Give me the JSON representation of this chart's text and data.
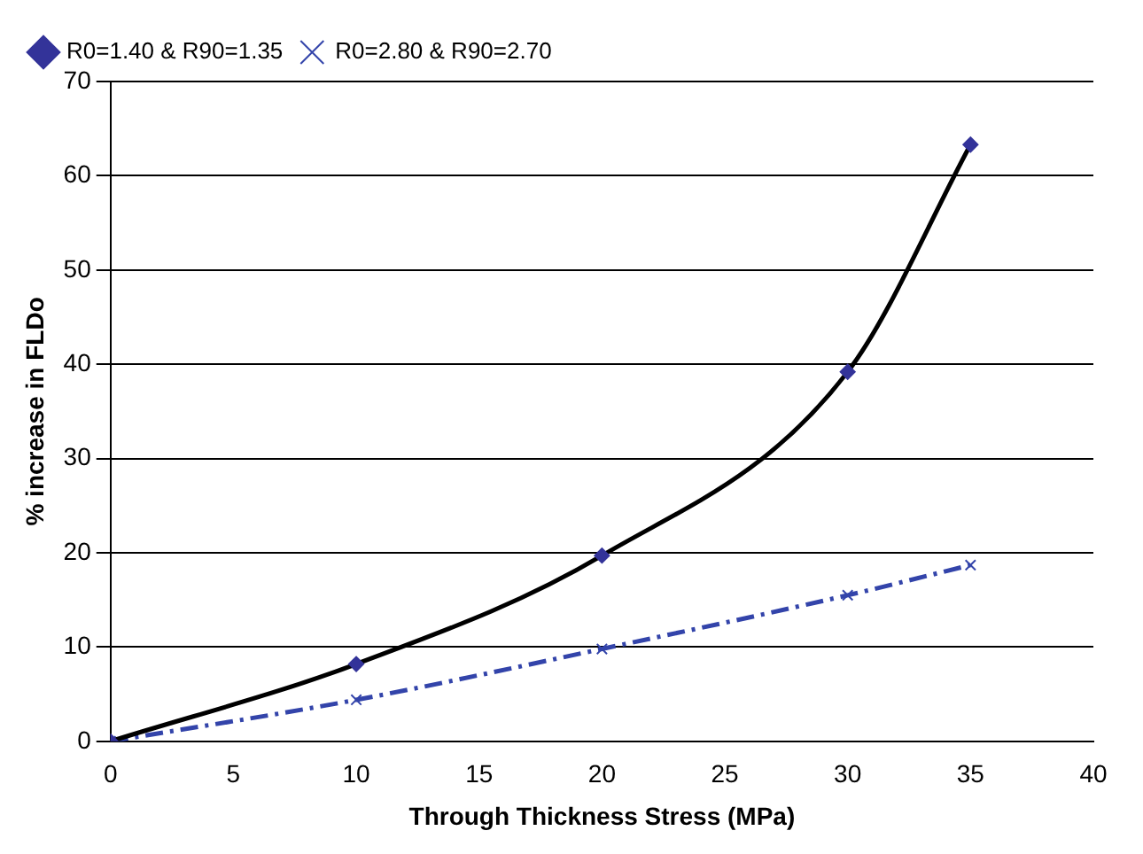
{
  "chart_data": {
    "type": "line",
    "xlabel": "Through Thickness Stress (MPa)",
    "ylabel": "% increase in FLDo",
    "x": [
      0,
      10,
      20,
      30,
      35
    ],
    "series": [
      {
        "name": "R0=1.40 & R90=1.35",
        "color": "#000000",
        "values": [
          0,
          8.2,
          19.7,
          39.2,
          63.3
        ],
        "marker": "diamond",
        "line_style": "solid"
      },
      {
        "name": "R0=2.80 & R90=2.70",
        "color": "#3344aa",
        "values": [
          0,
          4.4,
          9.8,
          15.5,
          18.7
        ],
        "marker": "cross",
        "line_style": "dashed"
      }
    ],
    "xlim": [
      0,
      40
    ],
    "xticks": [
      0,
      5,
      10,
      15,
      20,
      25,
      30,
      35,
      40
    ],
    "ylim": [
      0,
      70
    ],
    "yticks": [
      0,
      10,
      20,
      30,
      40,
      50,
      60,
      70
    ],
    "grid": "y",
    "legend": "top left"
  }
}
